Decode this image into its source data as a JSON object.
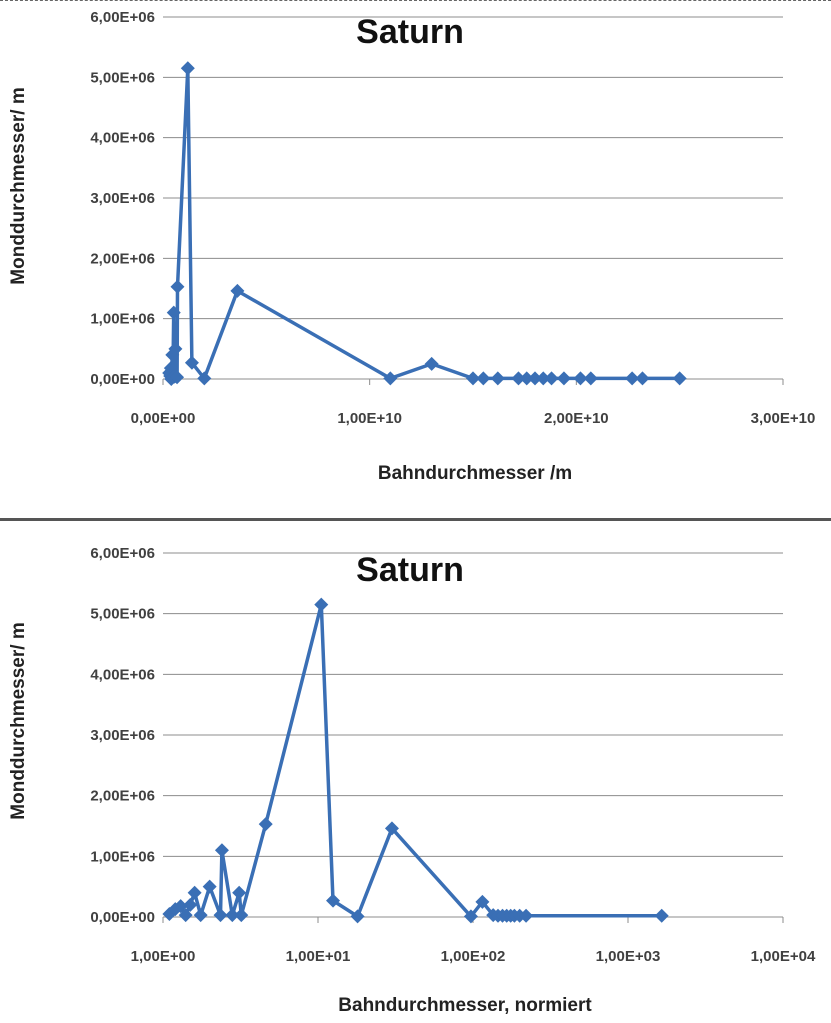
{
  "chart_data": [
    {
      "type": "line",
      "title": "Saturn",
      "xlabel": "Bahndurchmesser /m",
      "ylabel": "Monddurchmesser/ m",
      "x_scale": "linear",
      "xlim": [
        0,
        30000000000
      ],
      "ylim": [
        0,
        6000000
      ],
      "x_ticks": [
        "0,00E+00",
        "1,00E+10",
        "2,00E+10",
        "3,00E+10"
      ],
      "y_ticks": [
        "0,00E+00",
        "1,00E+06",
        "2,00E+06",
        "3,00E+06",
        "4,00E+06",
        "5,00E+06",
        "6,00E+06"
      ],
      "grid": true,
      "legend": "none",
      "series": [
        {
          "color": "#3a6fb5",
          "marker": "diamond",
          "points": [
            [
              300000000,
              100000
            ],
            [
              350000000,
              50000
            ],
            [
              380000000,
              180000
            ],
            [
              400000000,
              0
            ],
            [
              450000000,
              400000
            ],
            [
              480000000,
              30000
            ],
            [
              520000000,
              1100000
            ],
            [
              560000000,
              40000
            ],
            [
              600000000,
              500000
            ],
            [
              680000000,
              30000
            ],
            [
              700000000,
              1530000
            ],
            [
              1200000000,
              5150000
            ],
            [
              1400000000,
              270000
            ],
            [
              2000000000,
              10000
            ],
            [
              3600000000,
              1460000
            ],
            [
              11000000000,
              10000
            ],
            [
              13000000000,
              250000
            ],
            [
              15000000000,
              10000
            ],
            [
              15500000000,
              10000
            ],
            [
              16200000000,
              10000
            ],
            [
              17200000000,
              10000
            ],
            [
              17600000000,
              10000
            ],
            [
              18000000000,
              10000
            ],
            [
              18400000000,
              10000
            ],
            [
              18800000000,
              10000
            ],
            [
              19400000000,
              10000
            ],
            [
              20200000000,
              10000
            ],
            [
              20700000000,
              10000
            ],
            [
              22700000000,
              10000
            ],
            [
              23200000000,
              10000
            ],
            [
              25000000000,
              10000
            ]
          ]
        }
      ]
    },
    {
      "type": "line",
      "title": "Saturn",
      "xlabel": "Bahndurchmesser, normiert",
      "ylabel": "Monddurchmesser/ m",
      "x_scale": "log",
      "xlim": [
        1,
        10000
      ],
      "ylim": [
        0,
        6000000
      ],
      "x_ticks": [
        "1,00E+00",
        "1,00E+01",
        "1,00E+02",
        "1,00E+03",
        "1,00E+04"
      ],
      "y_ticks": [
        "0,00E+00",
        "1,00E+06",
        "2,00E+06",
        "3,00E+06",
        "4,00E+06",
        "5,00E+06",
        "6,00E+06"
      ],
      "grid": true,
      "legend": "none",
      "series": [
        {
          "color": "#3a6fb5",
          "marker": "diamond",
          "points": [
            [
              1.1,
              50000
            ],
            [
              1.2,
              130000
            ],
            [
              1.3,
              180000
            ],
            [
              1.4,
              30000
            ],
            [
              1.5,
              200000
            ],
            [
              1.6,
              400000
            ],
            [
              1.75,
              30000
            ],
            [
              2.0,
              500000
            ],
            [
              2.35,
              30000
            ],
            [
              2.4,
              1100000
            ],
            [
              2.8,
              30000
            ],
            [
              3.1,
              400000
            ],
            [
              3.2,
              30000
            ],
            [
              4.6,
              1530000
            ],
            [
              10.5,
              5150000
            ],
            [
              12.5,
              270000
            ],
            [
              18,
              10000
            ],
            [
              30,
              1460000
            ],
            [
              97,
              10000
            ],
            [
              115,
              250000
            ],
            [
              135,
              30000
            ],
            [
              145,
              20000
            ],
            [
              155,
              20000
            ],
            [
              165,
              20000
            ],
            [
              175,
              20000
            ],
            [
              185,
              20000
            ],
            [
              200,
              20000
            ],
            [
              220,
              20000
            ],
            [
              1650,
              20000
            ]
          ]
        }
      ]
    }
  ]
}
